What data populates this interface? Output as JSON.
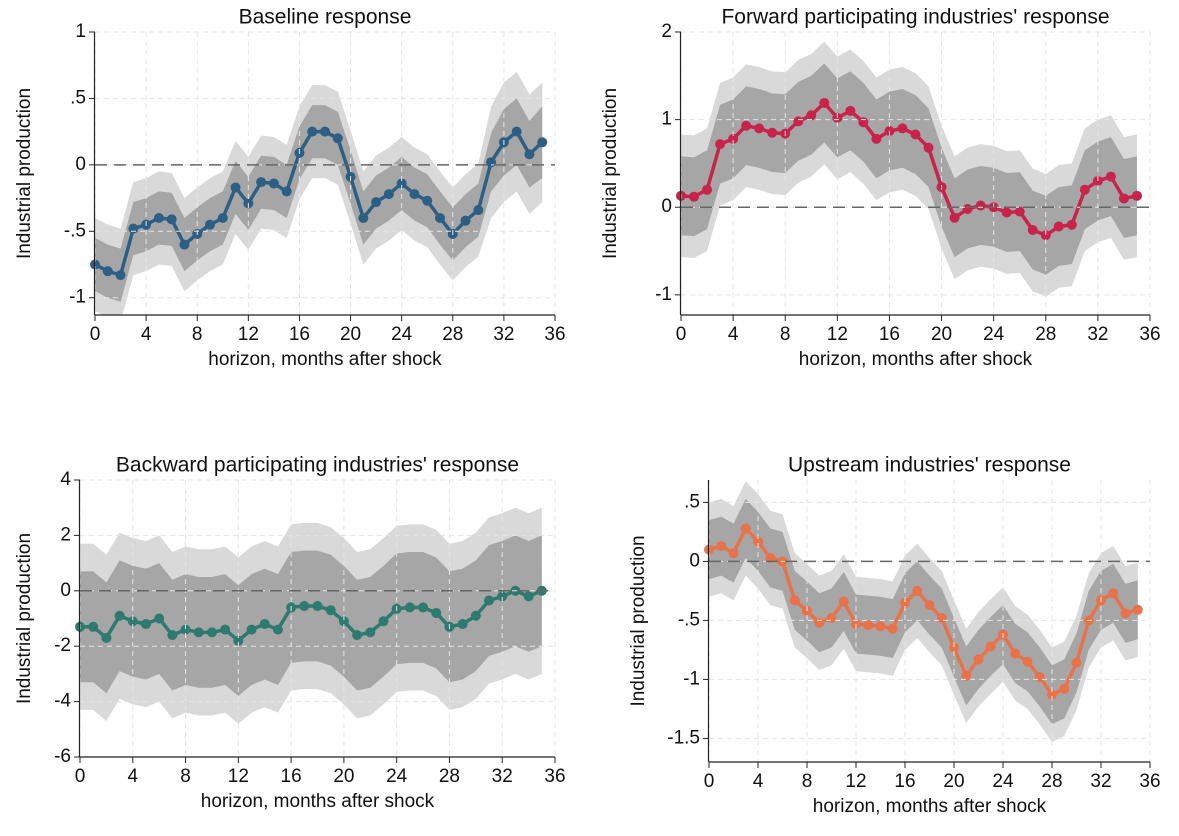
{
  "chart_data": [
    {
      "type": "line",
      "title": "Baseline response",
      "xlabel": "horizon, months after shock",
      "ylabel": "Industrial production",
      "x": [
        0,
        1,
        2,
        3,
        4,
        5,
        6,
        7,
        8,
        9,
        10,
        11,
        12,
        13,
        14,
        15,
        16,
        17,
        18,
        19,
        20,
        21,
        22,
        23,
        24,
        25,
        26,
        27,
        28,
        29,
        30,
        31,
        32,
        33,
        34,
        35
      ],
      "series": [
        {
          "color": "#2d5f85",
          "values": [
            -0.75,
            -0.8,
            -0.83,
            -0.48,
            -0.45,
            -0.4,
            -0.41,
            -0.6,
            -0.52,
            -0.45,
            -0.4,
            -0.17,
            -0.29,
            -0.13,
            -0.14,
            -0.2,
            0.09,
            0.25,
            0.25,
            0.2,
            -0.09,
            -0.4,
            -0.28,
            -0.22,
            -0.14,
            -0.22,
            -0.27,
            -0.4,
            -0.52,
            -0.42,
            -0.34,
            0.02,
            0.17,
            0.25,
            0.08,
            0.17
          ]
        }
      ],
      "bands": [
        {
          "color": "#d9d9d9",
          "lower": [
            -1.1,
            -1.15,
            -1.18,
            -0.83,
            -0.8,
            -0.75,
            -0.76,
            -0.95,
            -0.87,
            -0.8,
            -0.75,
            -0.52,
            -0.64,
            -0.48,
            -0.49,
            -0.55,
            -0.26,
            -0.1,
            -0.1,
            -0.15,
            -0.44,
            -0.75,
            -0.63,
            -0.57,
            -0.49,
            -0.57,
            -0.62,
            -0.75,
            -0.87,
            -0.77,
            -0.69,
            -0.4,
            -0.28,
            -0.2,
            -0.37,
            -0.28
          ],
          "upper": [
            -0.4,
            -0.45,
            -0.48,
            -0.13,
            -0.1,
            -0.05,
            -0.06,
            -0.25,
            -0.17,
            -0.1,
            -0.05,
            0.18,
            0.06,
            0.22,
            0.21,
            0.15,
            0.44,
            0.6,
            0.6,
            0.55,
            0.26,
            -0.05,
            0.07,
            0.13,
            0.21,
            0.13,
            0.08,
            -0.05,
            -0.17,
            -0.07,
            0.01,
            0.44,
            0.62,
            0.7,
            0.53,
            0.62
          ]
        },
        {
          "color": "#a6a6a6",
          "lower": [
            -0.95,
            -1,
            -1.03,
            -0.68,
            -0.65,
            -0.6,
            -0.61,
            -0.8,
            -0.72,
            -0.65,
            -0.6,
            -0.37,
            -0.49,
            -0.33,
            -0.34,
            -0.4,
            -0.11,
            0.05,
            0.05,
            0,
            -0.29,
            -0.6,
            -0.48,
            -0.42,
            -0.34,
            -0.42,
            -0.47,
            -0.6,
            -0.72,
            -0.62,
            -0.54,
            -0.2,
            -0.08,
            0,
            -0.17,
            -0.1
          ],
          "upper": [
            -0.55,
            -0.6,
            -0.63,
            -0.28,
            -0.25,
            -0.2,
            -0.21,
            -0.4,
            -0.32,
            -0.25,
            -0.2,
            0.03,
            -0.09,
            0.07,
            0.06,
            0,
            0.29,
            0.45,
            0.45,
            0.4,
            0.11,
            -0.2,
            -0.08,
            -0.02,
            0.06,
            -0.02,
            -0.07,
            -0.2,
            -0.32,
            -0.22,
            -0.14,
            0.24,
            0.42,
            0.5,
            0.33,
            0.44
          ]
        }
      ],
      "reference_line": 0,
      "xlim": [
        0,
        36
      ],
      "xticks": [
        0,
        4,
        8,
        12,
        16,
        20,
        24,
        28,
        32,
        36
      ],
      "ylim": [
        -1.13,
        1
      ],
      "yticks": [
        1,
        {
          "value": 0.5,
          "label": ".5"
        },
        0,
        {
          "value": -0.5,
          "label": "-.5"
        },
        -1
      ],
      "grid": true
    },
    {
      "type": "line",
      "title": "Forward participating industries' response",
      "xlabel": "horizon, months after shock",
      "ylabel": "Industrial production",
      "x": [
        0,
        1,
        2,
        3,
        4,
        5,
        6,
        7,
        8,
        9,
        10,
        11,
        12,
        13,
        14,
        15,
        16,
        17,
        18,
        19,
        20,
        21,
        22,
        23,
        24,
        25,
        26,
        27,
        28,
        29,
        30,
        31,
        32,
        33,
        34,
        35
      ],
      "series": [
        {
          "color": "#c8234a",
          "values": [
            0.13,
            0.12,
            0.2,
            0.72,
            0.78,
            0.93,
            0.9,
            0.85,
            0.84,
            0.98,
            1.05,
            1.19,
            1.02,
            1.1,
            0.97,
            0.78,
            0.87,
            0.9,
            0.83,
            0.68,
            0.23,
            -0.12,
            -0.02,
            0.02,
            0,
            -0.06,
            -0.05,
            -0.26,
            -0.32,
            -0.22,
            -0.2,
            0.2,
            0.3,
            0.35,
            0.1,
            0.13
          ]
        }
      ],
      "bands": [
        {
          "color": "#d9d9d9",
          "lower": [
            -0.57,
            -0.58,
            -0.5,
            0.02,
            0.08,
            0.23,
            0.2,
            0.15,
            0.14,
            0.28,
            0.35,
            0.49,
            0.32,
            0.4,
            0.27,
            0.08,
            0.17,
            0.2,
            0.13,
            -0.02,
            -0.47,
            -0.82,
            -0.72,
            -0.68,
            -0.7,
            -0.76,
            -0.75,
            -0.96,
            -1.02,
            -0.92,
            -0.9,
            -0.5,
            -0.4,
            -0.35,
            -0.6,
            -0.57
          ],
          "upper": [
            0.83,
            0.82,
            0.9,
            1.42,
            1.48,
            1.63,
            1.6,
            1.55,
            1.54,
            1.68,
            1.75,
            1.89,
            1.72,
            1.8,
            1.67,
            1.48,
            1.57,
            1.6,
            1.53,
            1.38,
            0.93,
            0.58,
            0.68,
            0.72,
            0.7,
            0.64,
            0.65,
            0.44,
            0.38,
            0.48,
            0.5,
            0.9,
            1,
            1.05,
            0.8,
            0.83
          ]
        },
        {
          "color": "#a6a6a6",
          "lower": [
            -0.32,
            -0.33,
            -0.25,
            0.27,
            0.33,
            0.48,
            0.45,
            0.4,
            0.39,
            0.53,
            0.6,
            0.74,
            0.57,
            0.65,
            0.52,
            0.33,
            0.42,
            0.45,
            0.38,
            0.23,
            -0.22,
            -0.57,
            -0.47,
            -0.43,
            -0.45,
            -0.51,
            -0.5,
            -0.71,
            -0.77,
            -0.67,
            -0.65,
            -0.25,
            -0.15,
            -0.1,
            -0.35,
            -0.32
          ],
          "upper": [
            0.58,
            0.57,
            0.65,
            1.17,
            1.23,
            1.38,
            1.35,
            1.3,
            1.29,
            1.43,
            1.5,
            1.64,
            1.47,
            1.55,
            1.42,
            1.23,
            1.32,
            1.35,
            1.28,
            1.13,
            0.68,
            0.33,
            0.43,
            0.47,
            0.45,
            0.39,
            0.4,
            0.19,
            0.13,
            0.23,
            0.25,
            0.65,
            0.75,
            0.8,
            0.55,
            0.58
          ]
        }
      ],
      "reference_line": 0,
      "xlim": [
        0,
        36
      ],
      "xticks": [
        0,
        4,
        8,
        12,
        16,
        20,
        24,
        28,
        32,
        36
      ],
      "ylim": [
        -1.23,
        2
      ],
      "yticks": [
        2,
        1,
        0,
        -1
      ],
      "grid": true
    },
    {
      "type": "line",
      "title": "Backward participating industries' response",
      "xlabel": "horizon, months after shock",
      "ylabel": "Industrial production",
      "x": [
        0,
        1,
        2,
        3,
        4,
        5,
        6,
        7,
        8,
        9,
        10,
        11,
        12,
        13,
        14,
        15,
        16,
        17,
        18,
        19,
        20,
        21,
        22,
        23,
        24,
        25,
        26,
        27,
        28,
        29,
        30,
        31,
        32,
        33,
        34,
        35
      ],
      "series": [
        {
          "color": "#2e7a6e",
          "values": [
            -1.3,
            -1.3,
            -1.7,
            -0.9,
            -1.1,
            -1.2,
            -1,
            -1.6,
            -1.4,
            -1.5,
            -1.5,
            -1.4,
            -1.8,
            -1.4,
            -1.2,
            -1.4,
            -0.6,
            -0.55,
            -0.55,
            -0.7,
            -1.1,
            -1.6,
            -1.5,
            -1.1,
            -0.65,
            -0.6,
            -0.6,
            -0.8,
            -1.3,
            -1.2,
            -0.9,
            -0.35,
            -0.2,
            0,
            -0.2,
            0
          ]
        }
      ],
      "bands": [
        {
          "color": "#d9d9d9",
          "lower": [
            -4.3,
            -4.3,
            -4.7,
            -3.9,
            -4.1,
            -4.2,
            -4,
            -4.6,
            -4.4,
            -4.5,
            -4.5,
            -4.4,
            -4.8,
            -4.4,
            -4.2,
            -4.4,
            -3.6,
            -3.55,
            -3.55,
            -3.7,
            -4.1,
            -4.6,
            -4.5,
            -4.1,
            -3.65,
            -3.6,
            -3.6,
            -3.8,
            -4.3,
            -4.2,
            -3.9,
            -3.35,
            -3.2,
            -3,
            -3.2,
            -3
          ],
          "upper": [
            1.7,
            1.7,
            1.3,
            2.1,
            1.9,
            1.8,
            2,
            1.4,
            1.6,
            1.5,
            1.5,
            1.6,
            1.2,
            1.6,
            1.8,
            1.6,
            2.4,
            2.45,
            2.45,
            2.3,
            1.9,
            1.4,
            1.5,
            1.9,
            2.35,
            2.4,
            2.4,
            2.2,
            1.7,
            1.8,
            2.1,
            2.65,
            2.8,
            3,
            2.8,
            3
          ]
        },
        {
          "color": "#a6a6a6",
          "lower": [
            -3.3,
            -3.3,
            -3.7,
            -2.9,
            -3.1,
            -3.2,
            -3,
            -3.6,
            -3.4,
            -3.5,
            -3.5,
            -3.4,
            -3.8,
            -3.4,
            -3.2,
            -3.4,
            -2.6,
            -2.55,
            -2.55,
            -2.7,
            -3.1,
            -3.6,
            -3.5,
            -3.1,
            -2.65,
            -2.6,
            -2.6,
            -2.8,
            -3.3,
            -3.2,
            -2.9,
            -2.35,
            -2.2,
            -2,
            -2.2,
            -2
          ],
          "upper": [
            0.7,
            0.7,
            0.3,
            1.1,
            0.9,
            0.8,
            1,
            0.4,
            0.6,
            0.5,
            0.5,
            0.6,
            0.2,
            0.6,
            0.8,
            0.6,
            1.4,
            1.45,
            1.45,
            1.3,
            0.9,
            0.4,
            0.5,
            0.9,
            1.35,
            1.4,
            1.4,
            1.2,
            0.7,
            0.8,
            1.1,
            1.65,
            1.8,
            2,
            1.8,
            2
          ]
        }
      ],
      "reference_line": 0,
      "xlim": [
        0,
        36
      ],
      "xticks": [
        0,
        4,
        8,
        12,
        16,
        20,
        24,
        28,
        32,
        36
      ],
      "ylim": [
        -6,
        4
      ],
      "yticks": [
        4,
        2,
        0,
        -2,
        -4,
        -6
      ],
      "grid": true
    },
    {
      "type": "line",
      "title": "Upstream industries' response",
      "xlabel": "horizon, months after shock",
      "ylabel": "Industrial production",
      "x": [
        0,
        1,
        2,
        3,
        4,
        5,
        6,
        7,
        8,
        9,
        10,
        11,
        12,
        13,
        14,
        15,
        16,
        17,
        18,
        19,
        20,
        21,
        22,
        23,
        24,
        25,
        26,
        27,
        28,
        29,
        30,
        31,
        32,
        33,
        34,
        35
      ],
      "series": [
        {
          "color": "#e8734a",
          "values": [
            0.1,
            0.13,
            0.07,
            0.28,
            0.17,
            0.03,
            0,
            -0.33,
            -0.42,
            -0.52,
            -0.48,
            -0.34,
            -0.53,
            -0.54,
            -0.55,
            -0.57,
            -0.35,
            -0.25,
            -0.37,
            -0.48,
            -0.73,
            -0.97,
            -0.83,
            -0.72,
            -0.62,
            -0.78,
            -0.85,
            -0.98,
            -1.13,
            -1.08,
            -0.86,
            -0.5,
            -0.33,
            -0.27,
            -0.44,
            -0.41
          ]
        }
      ],
      "bands": [
        {
          "color": "#d9d9d9",
          "lower": [
            -0.3,
            -0.27,
            -0.33,
            -0.12,
            -0.23,
            -0.37,
            -0.4,
            -0.73,
            -0.82,
            -0.92,
            -0.88,
            -0.74,
            -0.93,
            -0.94,
            -0.95,
            -0.97,
            -0.75,
            -0.65,
            -0.77,
            -0.88,
            -1.13,
            -1.37,
            -1.23,
            -1.12,
            -1.02,
            -1.18,
            -1.25,
            -1.38,
            -1.53,
            -1.48,
            -1.26,
            -0.9,
            -0.73,
            -0.67,
            -0.84,
            -0.81
          ],
          "upper": [
            0.5,
            0.53,
            0.47,
            0.68,
            0.57,
            0.43,
            0.4,
            0.07,
            -0.02,
            -0.12,
            -0.08,
            0.06,
            -0.13,
            -0.14,
            -0.15,
            -0.17,
            0.05,
            0.15,
            0.03,
            -0.08,
            -0.33,
            -0.57,
            -0.43,
            -0.32,
            -0.22,
            -0.38,
            -0.45,
            -0.58,
            -0.73,
            -0.68,
            -0.46,
            -0.1,
            0.07,
            0.13,
            -0.04,
            -0.01
          ]
        },
        {
          "color": "#a6a6a6",
          "lower": [
            -0.15,
            -0.12,
            -0.18,
            0.03,
            -0.08,
            -0.22,
            -0.25,
            -0.58,
            -0.67,
            -0.77,
            -0.73,
            -0.59,
            -0.78,
            -0.79,
            -0.8,
            -0.82,
            -0.6,
            -0.5,
            -0.62,
            -0.73,
            -0.98,
            -1.22,
            -1.08,
            -0.97,
            -0.87,
            -1.03,
            -1.1,
            -1.23,
            -1.38,
            -1.33,
            -1.11,
            -0.75,
            -0.58,
            -0.52,
            -0.69,
            -0.66
          ],
          "upper": [
            0.35,
            0.38,
            0.32,
            0.53,
            0.42,
            0.28,
            0.25,
            -0.08,
            -0.17,
            -0.27,
            -0.23,
            -0.09,
            -0.28,
            -0.29,
            -0.3,
            -0.32,
            -0.1,
            0,
            -0.12,
            -0.23,
            -0.48,
            -0.72,
            -0.58,
            -0.47,
            -0.37,
            -0.53,
            -0.6,
            -0.73,
            -0.88,
            -0.83,
            -0.61,
            -0.25,
            -0.08,
            -0.02,
            -0.19,
            -0.16
          ]
        }
      ],
      "reference_line": 0,
      "xlim": [
        0,
        36
      ],
      "xticks": [
        0,
        4,
        8,
        12,
        16,
        20,
        24,
        28,
        32,
        36
      ],
      "ylim": [
        -1.7,
        0.69
      ],
      "yticks": [
        {
          "value": 0.5,
          "label": ".5"
        },
        0,
        {
          "value": -0.5,
          "label": "-.5"
        },
        -1,
        {
          "value": -1.5,
          "label": "-1.5"
        }
      ],
      "grid": true
    }
  ]
}
